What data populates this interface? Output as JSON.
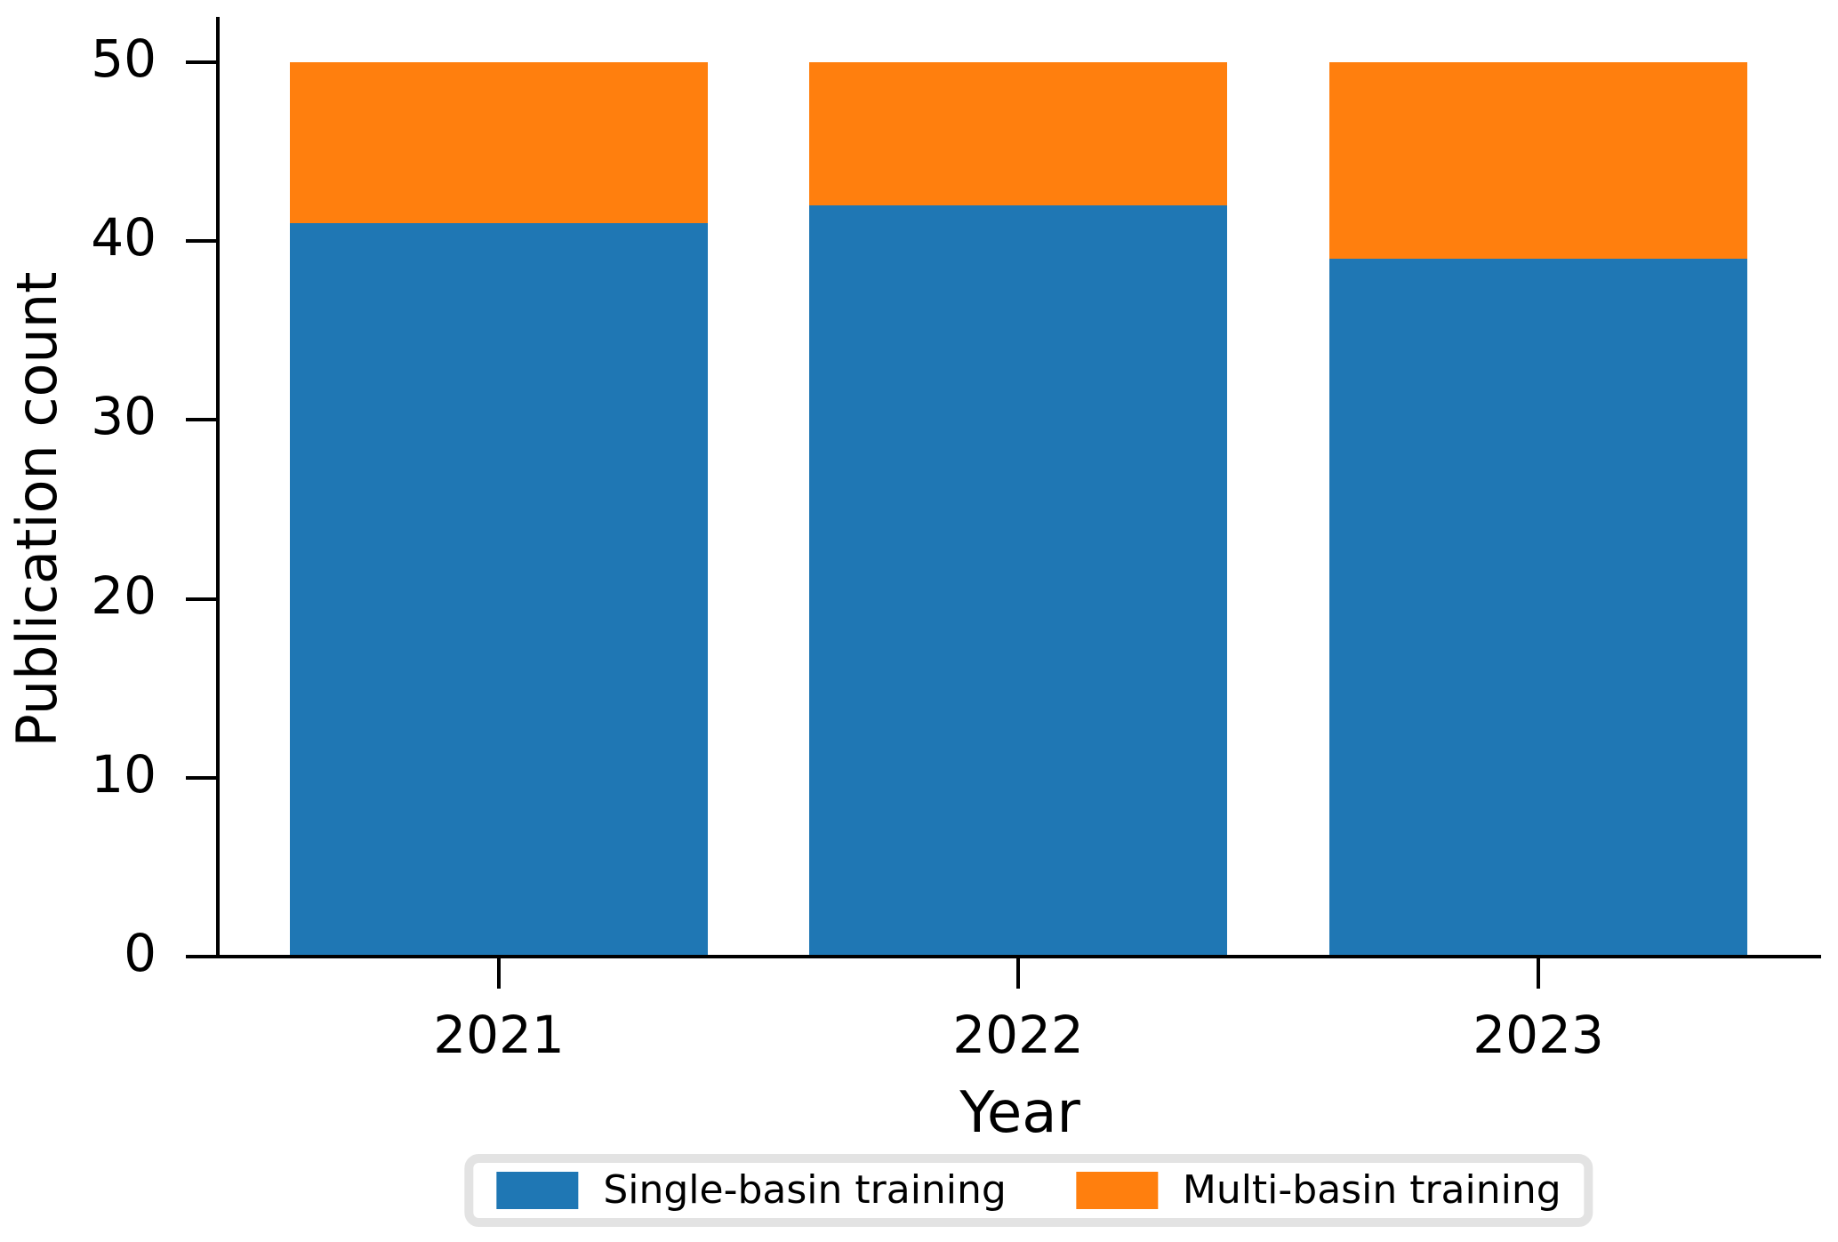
{
  "chart_data": {
    "type": "bar",
    "stacked": true,
    "categories": [
      "2021",
      "2022",
      "2023"
    ],
    "series": [
      {
        "name": "Single-basin training",
        "color": "#1f77b4",
        "values": [
          41,
          42,
          39
        ]
      },
      {
        "name": "Multi-basin training",
        "color": "#ff7f0e",
        "values": [
          9,
          8,
          11
        ]
      }
    ],
    "title": "",
    "xlabel": "Year",
    "ylabel": "Publication count",
    "ylim": [
      0,
      50
    ],
    "yticks": [
      0,
      10,
      20,
      30,
      40,
      50
    ],
    "grid": false,
    "legend_position": "bottom-center",
    "axis_color": "#000000",
    "legend_border_color": "#e3e3e3",
    "background_color": "#ffffff"
  }
}
